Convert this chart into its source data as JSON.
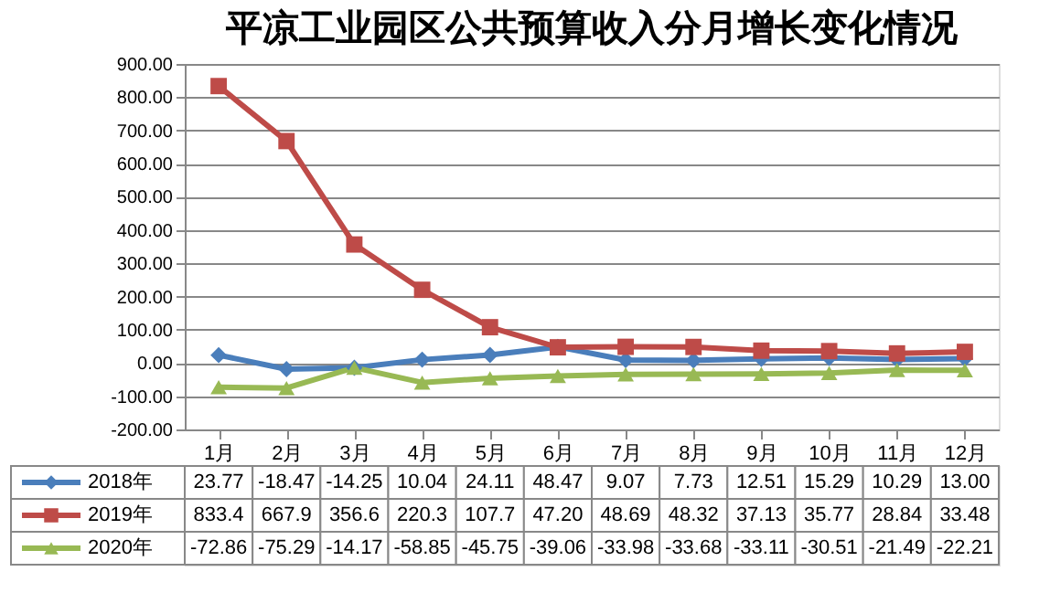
{
  "chart_data": {
    "type": "line",
    "title": "平凉工业园区公共预算收入分月增长变化情况",
    "categories": [
      "1月",
      "2月",
      "3月",
      "4月",
      "5月",
      "6月",
      "7月",
      "8月",
      "9月",
      "10月",
      "11月",
      "12月"
    ],
    "series": [
      {
        "name": "2018年",
        "color": "#4a7ebb",
        "marker": "diamond",
        "values": [
          23.77,
          -18.47,
          -14.25,
          10.04,
          24.11,
          48.47,
          9.07,
          7.73,
          12.51,
          15.29,
          10.29,
          13.0
        ],
        "value_labels": [
          "23.77",
          "-18.47",
          "-14.25",
          "10.04",
          "24.11",
          "48.47",
          "9.07",
          "7.73",
          "12.51",
          "15.29",
          "10.29",
          "13.00"
        ]
      },
      {
        "name": "2019年",
        "color": "#be4b48",
        "marker": "square",
        "values": [
          833.4,
          667.9,
          356.6,
          220.3,
          107.7,
          47.2,
          48.69,
          48.32,
          37.13,
          35.77,
          28.84,
          33.48
        ],
        "value_labels": [
          "833.4",
          "667.9",
          "356.6",
          "220.3",
          "107.7",
          "47.20",
          "48.69",
          "48.32",
          "37.13",
          "35.77",
          "28.84",
          "33.48"
        ]
      },
      {
        "name": "2020年",
        "color": "#98b954",
        "marker": "triangle",
        "values": [
          -72.86,
          -75.29,
          -14.17,
          -58.85,
          -45.75,
          -39.06,
          -33.98,
          -33.68,
          -33.11,
          -30.51,
          -21.49,
          -22.21
        ],
        "value_labels": [
          "-72.86",
          "-75.29",
          "-14.17",
          "-58.85",
          "-45.75",
          "-39.06",
          "-33.98",
          "-33.68",
          "-33.11",
          "-30.51",
          "-21.49",
          "-22.21"
        ]
      }
    ],
    "ylim": [
      -200,
      900
    ],
    "yticks": [
      {
        "value": -200,
        "label": "-200.00"
      },
      {
        "value": -100,
        "label": "-100.00"
      },
      {
        "value": 0,
        "label": "0.00"
      },
      {
        "value": 100,
        "label": "100.00"
      },
      {
        "value": 200,
        "label": "200.00"
      },
      {
        "value": 300,
        "label": "300.00"
      },
      {
        "value": 400,
        "label": "400.00"
      },
      {
        "value": 500,
        "label": "500.00"
      },
      {
        "value": 600,
        "label": "600.00"
      },
      {
        "value": 700,
        "label": "700.00"
      },
      {
        "value": 800,
        "label": "800.00"
      },
      {
        "value": 900,
        "label": "900.00"
      }
    ],
    "grid": "y",
    "legend": "bottom",
    "line_style": "solid"
  }
}
